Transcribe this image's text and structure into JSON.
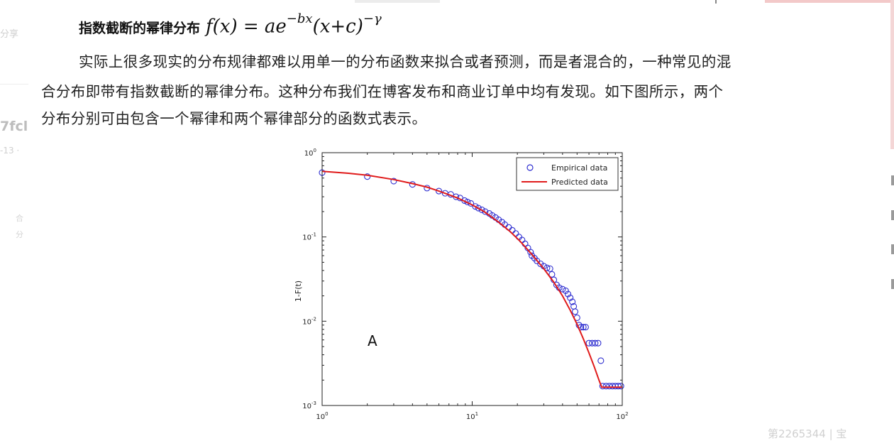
{
  "page": {
    "side_share": "分享",
    "side_hash": "7fcl",
    "side_date": "-13 ·",
    "side_small_1": "合",
    "side_small_2": "分",
    "bottom_fragment": "第2265344 | 宝"
  },
  "article": {
    "heading": "指数截断的幂律分布",
    "formula_main": "f(x) = ae",
    "formula_exp1": "−bx",
    "formula_mid": "(x+c)",
    "formula_exp2": "−γ",
    "para_line1": "实际上很多现实的分布规律都难以用单一的分布函数来拟合或者预测，而是者混合的，一种常见的混",
    "para_line2": "合分布即带有指数截断的幂律分布。这种分布我们在博客发布和商业订单中均有发现。如下图所示，两个",
    "para_line3": "分布分别可由包含一个幂律和两个幂律部分的函数式表示。"
  },
  "chart_data": {
    "type": "scatter",
    "panel_label": "A",
    "xlabel": "",
    "ylabel": "1-F(t)",
    "x_scale": "log",
    "y_scale": "log",
    "xlim": [
      1,
      100
    ],
    "ylim": [
      0.001,
      1
    ],
    "x_ticks": [
      {
        "base": "10",
        "exp": "0"
      },
      {
        "base": "10",
        "exp": "1"
      },
      {
        "base": "10",
        "exp": "2"
      }
    ],
    "y_ticks": [
      {
        "base": "10",
        "exp": "0"
      },
      {
        "base": "10",
        "exp": "-1"
      },
      {
        "base": "10",
        "exp": "-2"
      },
      {
        "base": "10",
        "exp": "-3"
      }
    ],
    "legend_position": "top-right",
    "series": [
      {
        "name": "Empirical data",
        "marker": "circle",
        "color": "#2f2fd0",
        "points": [
          [
            1.0,
            0.58
          ],
          [
            2.0,
            0.52
          ],
          [
            3.0,
            0.46
          ],
          [
            4.0,
            0.42
          ],
          [
            5.0,
            0.38
          ],
          [
            6.0,
            0.35
          ],
          [
            6.6,
            0.33
          ],
          [
            7.2,
            0.32
          ],
          [
            7.8,
            0.3
          ],
          [
            8.3,
            0.29
          ],
          [
            8.9,
            0.27
          ],
          [
            9.3,
            0.26
          ],
          [
            9.8,
            0.25
          ],
          [
            10.5,
            0.23
          ],
          [
            11.0,
            0.22
          ],
          [
            11.6,
            0.21
          ],
          [
            12.2,
            0.2
          ],
          [
            13.0,
            0.19
          ],
          [
            13.6,
            0.18
          ],
          [
            14.3,
            0.17
          ],
          [
            15.0,
            0.16
          ],
          [
            15.8,
            0.15
          ],
          [
            16.5,
            0.14
          ],
          [
            17.5,
            0.13
          ],
          [
            18.5,
            0.12
          ],
          [
            19.5,
            0.11
          ],
          [
            20.5,
            0.1
          ],
          [
            21.5,
            0.092
          ],
          [
            22.5,
            0.083
          ],
          [
            23.5,
            0.074
          ],
          [
            24.5,
            0.066
          ],
          [
            25.0,
            0.06
          ],
          [
            26.0,
            0.056
          ],
          [
            27.0,
            0.052
          ],
          [
            28.5,
            0.048
          ],
          [
            30.0,
            0.045
          ],
          [
            31.5,
            0.043
          ],
          [
            33.0,
            0.042
          ],
          [
            34.0,
            0.036
          ],
          [
            35.0,
            0.031
          ],
          [
            36.5,
            0.027
          ],
          [
            38.0,
            0.025
          ],
          [
            40.0,
            0.024
          ],
          [
            42.0,
            0.023
          ],
          [
            43.5,
            0.021
          ],
          [
            45.0,
            0.019
          ],
          [
            46.5,
            0.017
          ],
          [
            47.5,
            0.015
          ],
          [
            48.5,
            0.013
          ],
          [
            50.0,
            0.011
          ],
          [
            51.5,
            0.009
          ],
          [
            53.0,
            0.0085
          ],
          [
            55.0,
            0.0085
          ],
          [
            57.0,
            0.0085
          ],
          [
            60.0,
            0.0055
          ],
          [
            63.0,
            0.0055
          ],
          [
            66.0,
            0.0055
          ],
          [
            69.0,
            0.0055
          ],
          [
            72.0,
            0.0034
          ],
          [
            74.0,
            0.0017
          ],
          [
            78.0,
            0.0017
          ],
          [
            82.0,
            0.0017
          ],
          [
            86.0,
            0.0017
          ],
          [
            90.0,
            0.0017
          ],
          [
            94.0,
            0.0017
          ],
          [
            98.0,
            0.0017
          ]
        ]
      },
      {
        "name": "Predicted data",
        "marker": "line",
        "color": "#e01b1b",
        "points": [
          [
            1.0,
            0.6
          ],
          [
            1.5,
            0.57
          ],
          [
            2.0,
            0.54
          ],
          [
            3.0,
            0.48
          ],
          [
            4.0,
            0.43
          ],
          [
            5.0,
            0.39
          ],
          [
            6.0,
            0.35
          ],
          [
            8.0,
            0.29
          ],
          [
            10.0,
            0.24
          ],
          [
            12.0,
            0.2
          ],
          [
            15.0,
            0.15
          ],
          [
            18.0,
            0.115
          ],
          [
            21.0,
            0.088
          ],
          [
            25.0,
            0.062
          ],
          [
            30.0,
            0.042
          ],
          [
            35.0,
            0.029
          ],
          [
            40.0,
            0.02
          ],
          [
            45.0,
            0.0135
          ],
          [
            50.0,
            0.0092
          ],
          [
            55.0,
            0.0062
          ],
          [
            60.0,
            0.0042
          ],
          [
            65.0,
            0.0029
          ],
          [
            70.0,
            0.002
          ],
          [
            73.0,
            0.00165
          ],
          [
            100.0,
            0.00165
          ]
        ]
      }
    ]
  }
}
